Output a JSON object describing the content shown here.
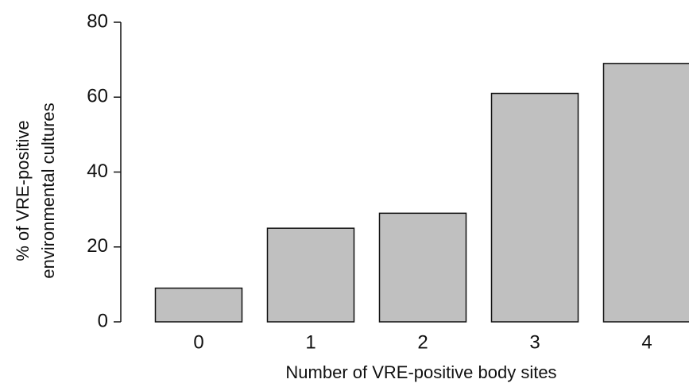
{
  "chart_data": {
    "type": "bar",
    "xlabel": "Number of VRE-positive body sites",
    "ylabel": [
      "% of VRE-positive",
      "environmental cultures"
    ],
    "categories": [
      "0",
      "1",
      "2",
      "3",
      "4"
    ],
    "values": [
      9,
      25,
      29,
      61,
      69
    ],
    "color": "#c0c0c0",
    "ylim": [
      0,
      80
    ],
    "yticks": [
      0,
      20,
      40,
      60,
      80
    ],
    "grid": false
  }
}
